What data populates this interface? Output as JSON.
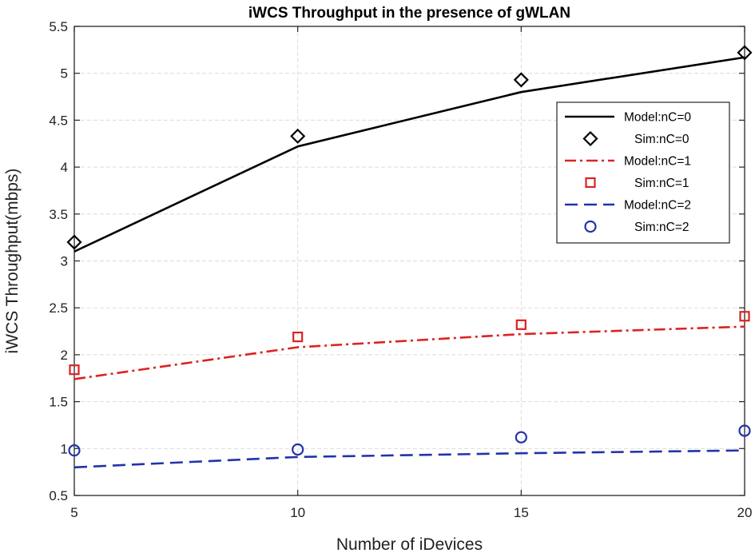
{
  "chart_data": {
    "type": "line",
    "title": "iWCS Throughput in the presence of gWLAN",
    "xlabel": "Number of iDevices",
    "ylabel": "iWCS Throughput(mbps)",
    "xlim": [
      5,
      20
    ],
    "ylim": [
      0.5,
      5.5
    ],
    "xticks": [
      5,
      10,
      15,
      20
    ],
    "xtick_labels": [
      "5",
      "10",
      "15",
      "20"
    ],
    "yticks": [
      0.5,
      1,
      1.5,
      2,
      2.5,
      3,
      3.5,
      4,
      4.5,
      5,
      5.5
    ],
    "ytick_labels": [
      "0.5",
      "1",
      "1.5",
      "2",
      "2.5",
      "3",
      "3.5",
      "4",
      "4.5",
      "5",
      "5.5"
    ],
    "grid": true,
    "legend_position": "right",
    "x": [
      5,
      10,
      15,
      20
    ],
    "series": [
      {
        "name": "Model:nC=0",
        "kind": "line",
        "style": "solid",
        "color": "#000000",
        "values": [
          3.1,
          4.22,
          4.8,
          5.17
        ]
      },
      {
        "name": "Sim:nC=0",
        "kind": "marker",
        "marker": "diamond",
        "color": "#000000",
        "values": [
          3.2,
          4.33,
          4.93,
          5.22
        ]
      },
      {
        "name": "Model:nC=1",
        "kind": "line",
        "style": "dashdot",
        "color": "#dd2222",
        "values": [
          1.74,
          2.08,
          2.22,
          2.3
        ]
      },
      {
        "name": "Sim:nC=1",
        "kind": "marker",
        "marker": "square",
        "color": "#dd2222",
        "values": [
          1.84,
          2.19,
          2.32,
          2.41
        ]
      },
      {
        "name": "Model:nC=2",
        "kind": "line",
        "style": "dashed",
        "color": "#2233aa",
        "values": [
          0.8,
          0.91,
          0.95,
          0.98
        ]
      },
      {
        "name": "Sim:nC=2",
        "kind": "marker",
        "marker": "circle",
        "color": "#2233aa",
        "values": [
          0.98,
          0.99,
          1.12,
          1.19
        ]
      }
    ]
  }
}
